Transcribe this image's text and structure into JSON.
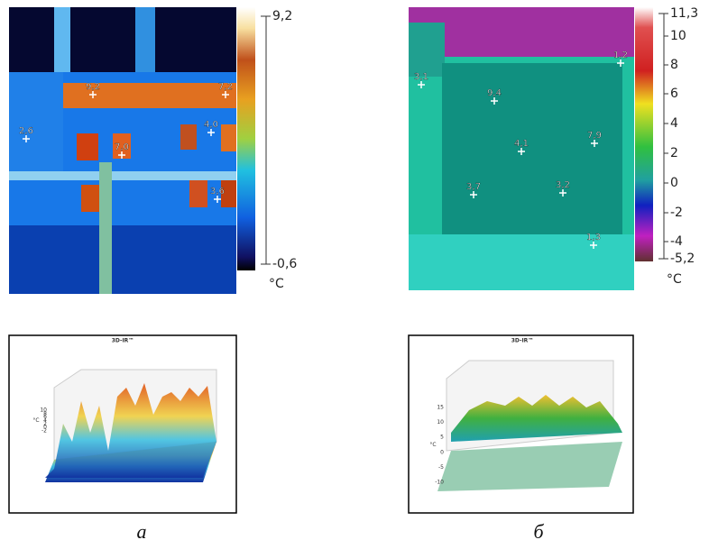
{
  "panels": [
    {
      "label": "а",
      "thermal": {
        "scale_labels": [
          "9,2",
          "-0,6"
        ],
        "unit": "°C",
        "points": [
          "9,2",
          "7,2",
          "2,6",
          "4,0",
          "7,0",
          "3,6"
        ]
      },
      "plot3d": {
        "title": "3D-IR™",
        "z_ticks": [
          "10",
          "8",
          "6",
          "4",
          "2",
          "0",
          "-2"
        ],
        "z_label": "°C"
      }
    },
    {
      "label": "б",
      "thermal": {
        "scale_labels": [
          "11,3",
          "10",
          "8",
          "6",
          "4",
          "2",
          "0",
          "-2",
          "-4",
          "-5,2"
        ],
        "unit": "°C",
        "points": [
          "3,1",
          "1,2",
          "9,4",
          "4,1",
          "7,9",
          "3,7",
          "3,2",
          "1,3"
        ]
      },
      "plot3d": {
        "title": "3D-IR™",
        "z_ticks": [
          "15",
          "10",
          "5",
          "0",
          "-5",
          "-10"
        ],
        "z_label": "°C"
      }
    }
  ]
}
